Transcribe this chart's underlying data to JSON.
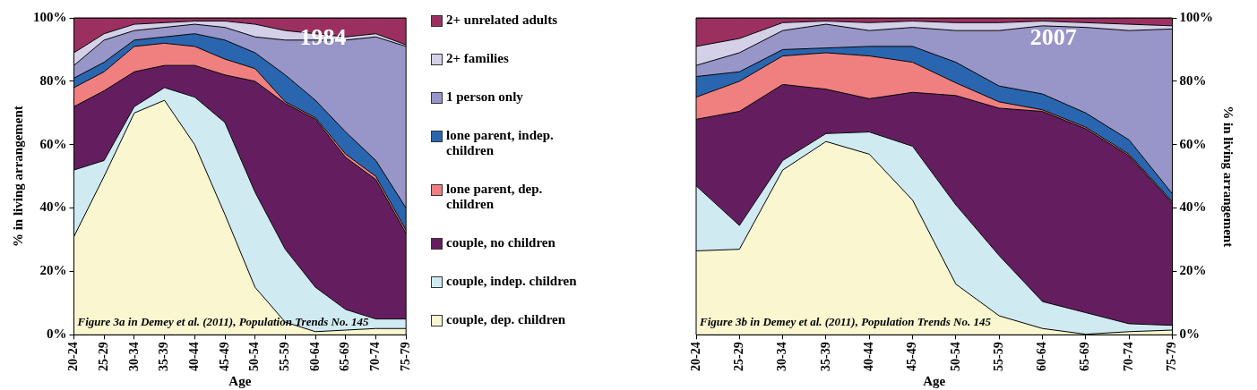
{
  "chart_data": [
    {
      "type": "area",
      "xlabel": "Age",
      "ylabel": "% in living arrangement",
      "categories": [
        "20-24",
        "25-29",
        "30-34",
        "35-39",
        "40-44",
        "45-49",
        "50-54",
        "55-59",
        "60-64",
        "65-69",
        "70-74",
        "75-79"
      ],
      "stacked": true,
      "ylim": [
        0,
        100
      ],
      "yticks": [
        {
          "value": 0,
          "label": "0%"
        },
        {
          "value": 20,
          "label": "20%"
        },
        {
          "value": 40,
          "label": "40%"
        },
        {
          "value": 60,
          "label": "60%"
        },
        {
          "value": 80,
          "label": "80%"
        },
        {
          "value": 100,
          "label": "100%"
        }
      ],
      "grid": false,
      "legend": "right",
      "annotations": [
        "1984",
        "Figure 3a in Demey et al. (2011), Population Trends No. 145"
      ],
      "series": [
        {
          "name": "couple, dep. children",
          "color": "#faf6d0",
          "values": [
            31,
            50,
            70,
            74,
            60,
            38,
            15,
            4,
            1,
            1.5,
            2,
            2
          ]
        },
        {
          "name": "couple, indep. children",
          "color": "#d0eaf2",
          "values": [
            21,
            5,
            2,
            4,
            15,
            29,
            30,
            23,
            14,
            6.5,
            3,
            3
          ]
        },
        {
          "name": "couple, no children",
          "color": "#641e60",
          "values": [
            20,
            22,
            11,
            7,
            10,
            15,
            35,
            46,
            53,
            48,
            44,
            27
          ]
        },
        {
          "name": "lone parent, dep. children",
          "color": "#f08080",
          "values": [
            6,
            6,
            8,
            7,
            6,
            5,
            4,
            0.5,
            0.5,
            1,
            1,
            1
          ]
        },
        {
          "name": "lone parent, indep. children",
          "color": "#2a66b0",
          "values": [
            3,
            3,
            2,
            2,
            4,
            6,
            5,
            8.5,
            5.5,
            7,
            5,
            7
          ]
        },
        {
          "name": "1 person only",
          "color": "#9896c8",
          "values": [
            4,
            7,
            3,
            3,
            3,
            4,
            5,
            11,
            19,
            29,
            39,
            51
          ]
        },
        {
          "name": "2+ families",
          "color": "#d4d0e8",
          "values": [
            4,
            2,
            2,
            1.5,
            1,
            2,
            4,
            3,
            2,
            1,
            1,
            0.5
          ]
        },
        {
          "name": "2+ unrelated adults",
          "color": "#9b3060",
          "values": [
            11,
            5,
            2,
            1.5,
            1,
            1,
            2,
            4,
            5,
            6,
            5,
            8.5
          ]
        }
      ]
    },
    {
      "type": "area",
      "xlabel": "Age",
      "ylabel": "% in living arrangement",
      "categories": [
        "20-24",
        "25-29",
        "30-34",
        "35-39",
        "40-44",
        "45-49",
        "50-54",
        "55-59",
        "60-64",
        "65-69",
        "70-74",
        "75-79"
      ],
      "stacked": true,
      "ylim": [
        0,
        100
      ],
      "yticks": [
        {
          "value": 0,
          "label": "0%"
        },
        {
          "value": 20,
          "label": "20%"
        },
        {
          "value": 40,
          "label": "40%"
        },
        {
          "value": 60,
          "label": "60%"
        },
        {
          "value": 80,
          "label": "80%"
        },
        {
          "value": 100,
          "label": "100%"
        }
      ],
      "grid": false,
      "annotations": [
        "2007",
        "Figure 3b in Demey et al. (2011), Population Trends No. 145"
      ],
      "series": [
        {
          "color": "#faf6d0",
          "values": [
            26.5,
            27,
            52,
            61,
            57,
            42.5,
            16,
            6,
            2,
            0.2,
            1,
            1.5
          ]
        },
        {
          "color": "#d0eaf2",
          "values": [
            20.5,
            7.5,
            3,
            2.5,
            7,
            17,
            25,
            19,
            8.5,
            6.8,
            2.5,
            1.5
          ]
        },
        {
          "color": "#641e60",
          "values": [
            21,
            36,
            24,
            14,
            10.5,
            17,
            34.5,
            46.5,
            60,
            58,
            53,
            38.5
          ]
        },
        {
          "color": "#f08080",
          "values": [
            7,
            9.5,
            9,
            11.5,
            13.5,
            9.5,
            4,
            2,
            0.5,
            0.5,
            0.5,
            0.5
          ]
        },
        {
          "color": "#2a66b0",
          "values": [
            6.5,
            3,
            2,
            1.5,
            3,
            5,
            6.5,
            5,
            5,
            4.5,
            4.5,
            2.5
          ]
        },
        {
          "color": "#9896c8",
          "values": [
            3.5,
            6,
            6,
            7.5,
            5,
            6,
            10,
            17.5,
            21.5,
            27,
            34.5,
            52
          ]
        },
        {
          "color": "#d4d0e8",
          "values": [
            6,
            4.5,
            2.5,
            1,
            2.5,
            2,
            2.5,
            2.5,
            1.5,
            1.5,
            2,
            1
          ]
        },
        {
          "color": "#9b3060",
          "values": [
            9,
            6.5,
            1.5,
            1,
            1.5,
            1,
            1.5,
            1.5,
            1,
            1.5,
            2,
            2.5
          ]
        }
      ]
    }
  ]
}
